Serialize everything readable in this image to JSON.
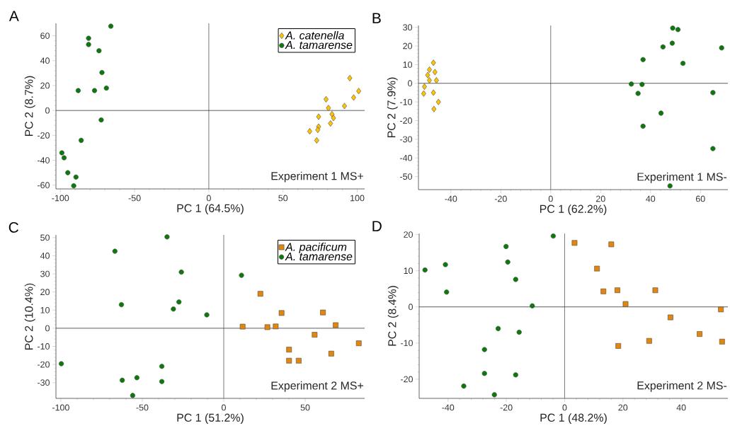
{
  "chart_data": [
    {
      "type": "scatter",
      "title": "A",
      "xlabel": "PC 1 (64.5%)",
      "ylabel": "PC 2 (8.7%)",
      "annotations": [
        "Experiment 1 MS+"
      ],
      "xlim": [
        -103,
        105
      ],
      "ylim": [
        -63,
        70
      ],
      "xticks": [
        -100,
        -50,
        0,
        50,
        100
      ],
      "yticks": [
        -60,
        -40,
        -20,
        0,
        20,
        40,
        60
      ],
      "legend": "top right",
      "grid": false,
      "ref_lines": [
        {
          "axis": "x",
          "value": 0,
          "color": "#555555"
        },
        {
          "axis": "y",
          "value": 0,
          "color": "#333333"
        }
      ],
      "series": [
        {
          "name": "A. catenella",
          "color": "#ffc400",
          "marker": "diamond",
          "x": [
            95,
            101,
            97.6,
            91.4,
            79,
            80.6,
            83,
            84,
            82,
            74,
            74,
            73.4,
            68,
            72.7
          ],
          "values": [
            26,
            15.6,
            10.4,
            3.6,
            9,
            2,
            -3,
            -6,
            -10.4,
            -5,
            -13,
            -15.6,
            -16.7,
            -24
          ]
        },
        {
          "name": "A. tamarense",
          "color": "#0a7a0a",
          "marker": "circle",
          "x": [
            -66,
            -81,
            -81,
            -74,
            -72,
            -88,
            -77,
            -69,
            -72.5,
            -86,
            -99,
            -97.5,
            -95,
            -89.5,
            -91
          ],
          "values": [
            67.7,
            58,
            53,
            48,
            30.5,
            16,
            16,
            18,
            -7.6,
            -24,
            -34,
            -38,
            -50,
            -53.5,
            -60.5
          ]
        }
      ]
    },
    {
      "type": "scatter",
      "title": "B",
      "xlabel": "PC 1 (62.2%)",
      "ylabel": "PC 2 (7.9%)",
      "annotations": [
        "Experiment 1 MS-"
      ],
      "xlim": [
        -53,
        71
      ],
      "ylim": [
        -57,
        31
      ],
      "xticks": [
        -40,
        -20,
        0,
        20,
        40,
        60
      ],
      "yticks": [
        -50,
        -40,
        -30,
        -20,
        -10,
        0,
        10,
        20,
        30
      ],
      "legend": false,
      "grid": false,
      "ref_lines": [
        {
          "axis": "x",
          "value": 0,
          "color": "#555555"
        },
        {
          "axis": "y",
          "value": 0,
          "color": "#333333"
        }
      ],
      "series": [
        {
          "color": "#ffc400",
          "marker": "diamond",
          "x": [
            -47,
            -48.6,
            -46.4,
            -49.3,
            -45.8,
            -48.6,
            -50.6,
            -50.9,
            -47,
            -45,
            -46.8
          ],
          "values": [
            11,
            7.3,
            6,
            4.4,
            1.6,
            1.6,
            -1.8,
            -5.5,
            -5,
            -10,
            -13.8
          ]
        },
        {
          "color": "#0a7a0a",
          "marker": "circle",
          "x": [
            48.9,
            51,
            48.7,
            45,
            68.5,
            37,
            53,
            32.3,
            36.6,
            35,
            65,
            44.2,
            37,
            65,
            47.8
          ],
          "values": [
            29.6,
            28.8,
            21.5,
            19.5,
            19,
            12.7,
            10.7,
            -0.4,
            -0.6,
            -5.4,
            -5,
            -16,
            -23,
            -35,
            -55
          ]
        }
      ]
    },
    {
      "type": "scatter",
      "title": "C",
      "xlabel": "PC 1 (51.2%)",
      "ylabel": "PC 2 (10.4%)",
      "annotations": [
        "Experiment 2 MS+"
      ],
      "xlim": [
        -103,
        86.5
      ],
      "ylim": [
        -38.7,
        51.5
      ],
      "xticks": [
        -100,
        -50,
        0,
        50
      ],
      "yticks": [
        -30,
        -20,
        -10,
        0,
        10,
        20,
        30,
        40,
        50
      ],
      "legend": "top right",
      "grid": false,
      "ref_lines": [
        {
          "axis": "x",
          "value": 0,
          "color": "#555555"
        },
        {
          "axis": "y",
          "value": 0,
          "color": "#333333"
        }
      ],
      "series": [
        {
          "name": "A. pacificum",
          "color": "#e3860b",
          "marker": "square",
          "x": [
            22.5,
            35.5,
            60.9,
            11.6,
            26.8,
            31.9,
            68.7,
            55.8,
            82.9,
            40.1,
            66,
            40.1,
            46
          ],
          "values": [
            19,
            8.4,
            8.7,
            0.9,
            0.6,
            1,
            1.7,
            -3.6,
            -8.3,
            -11.8,
            -14,
            -17.9,
            -17.9
          ]
        },
        {
          "name": "A. tamarense",
          "color": "#0a7a0a",
          "marker": "circle",
          "x": [
            -34.8,
            -66.8,
            -26,
            10.9,
            -62.8,
            -27.5,
            -30.9,
            -10.4,
            -99.7,
            -38,
            -62.3,
            -53.3,
            -38,
            -55.9
          ],
          "values": [
            50.4,
            42.5,
            31,
            29.2,
            13,
            14.5,
            10.6,
            7.4,
            -19.6,
            -21,
            -28.7,
            -27.3,
            -29.4,
            -37.1
          ]
        }
      ]
    },
    {
      "type": "scatter",
      "title": "D",
      "xlabel": "PC 1 (48.2%)",
      "ylabel": "PC 2 (8.4%)",
      "annotations": [
        "Experiment 2 MS-"
      ],
      "xlim": [
        -49.9,
        56
      ],
      "ylim": [
        -25.3,
        20.3
      ],
      "xticks": [
        -40,
        -20,
        0,
        20,
        40
      ],
      "yticks": [
        -20,
        -10,
        0,
        10,
        20
      ],
      "legend": false,
      "grid": false,
      "ref_lines": [
        {
          "axis": "x",
          "value": 0,
          "color": "#555555"
        },
        {
          "axis": "y",
          "value": 0,
          "color": "#333333"
        }
      ],
      "series": [
        {
          "color": "#e3860b",
          "marker": "square",
          "x": [
            3.4,
            16,
            11.1,
            13.3,
            18.1,
            31.1,
            20.9,
            53.6,
            36.3,
            46.3,
            54,
            29,
            18.4
          ],
          "values": [
            17.7,
            17.3,
            10.6,
            4.3,
            4.6,
            4.6,
            0.8,
            -0.7,
            -2.9,
            -7.5,
            -9.6,
            -9.4,
            -10.8
          ]
        },
        {
          "color": "#0a7a0a",
          "marker": "circle",
          "x": [
            -3.9,
            -20.1,
            -19.5,
            -47.9,
            -40.9,
            -40.5,
            -16.8,
            -11.1,
            -22.8,
            -15.6,
            -27.5,
            -27.5,
            -16.8,
            -34.6,
            -24.1
          ],
          "values": [
            19.6,
            16.7,
            12.4,
            10.2,
            11.7,
            4.1,
            7.6,
            0.3,
            -6,
            -7,
            -11.8,
            -18.4,
            -18.8,
            -21.9,
            -24.3
          ]
        }
      ]
    }
  ]
}
